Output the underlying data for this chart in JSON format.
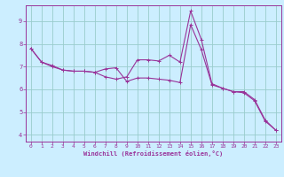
{
  "xlabel": "Windchill (Refroidissement éolien,°C)",
  "background_color": "#cceeff",
  "line_color": "#993399",
  "grid_color": "#99cccc",
  "xlim": [
    -0.5,
    23.5
  ],
  "ylim": [
    3.7,
    9.7
  ],
  "xticks": [
    0,
    1,
    2,
    3,
    4,
    5,
    6,
    7,
    8,
    9,
    10,
    11,
    12,
    13,
    14,
    15,
    16,
    17,
    18,
    19,
    20,
    21,
    22,
    23
  ],
  "yticks": [
    4,
    5,
    6,
    7,
    8,
    9
  ],
  "line1_x": [
    0,
    1,
    2,
    3,
    4,
    5,
    6,
    7,
    8,
    9,
    10,
    11,
    12,
    13,
    14,
    15,
    16,
    17,
    18,
    19,
    20,
    21,
    22,
    23
  ],
  "line1_y": [
    7.8,
    7.2,
    7.0,
    6.85,
    6.8,
    6.8,
    6.75,
    6.9,
    6.95,
    6.35,
    6.5,
    6.5,
    6.45,
    6.4,
    6.3,
    8.85,
    7.75,
    6.2,
    6.05,
    5.9,
    5.85,
    5.5,
    4.6,
    4.2
  ],
  "line2_x": [
    0,
    1,
    2,
    3,
    4,
    5,
    6,
    7,
    8,
    9,
    10,
    11,
    12,
    13,
    14,
    15,
    16,
    17,
    18,
    19,
    20,
    21,
    22,
    23
  ],
  "line2_y": [
    7.8,
    7.2,
    7.05,
    6.85,
    6.8,
    6.8,
    6.75,
    6.55,
    6.45,
    6.55,
    7.3,
    7.3,
    7.25,
    7.5,
    7.2,
    9.45,
    8.2,
    6.25,
    6.05,
    5.9,
    5.9,
    5.55,
    4.65,
    4.2
  ]
}
